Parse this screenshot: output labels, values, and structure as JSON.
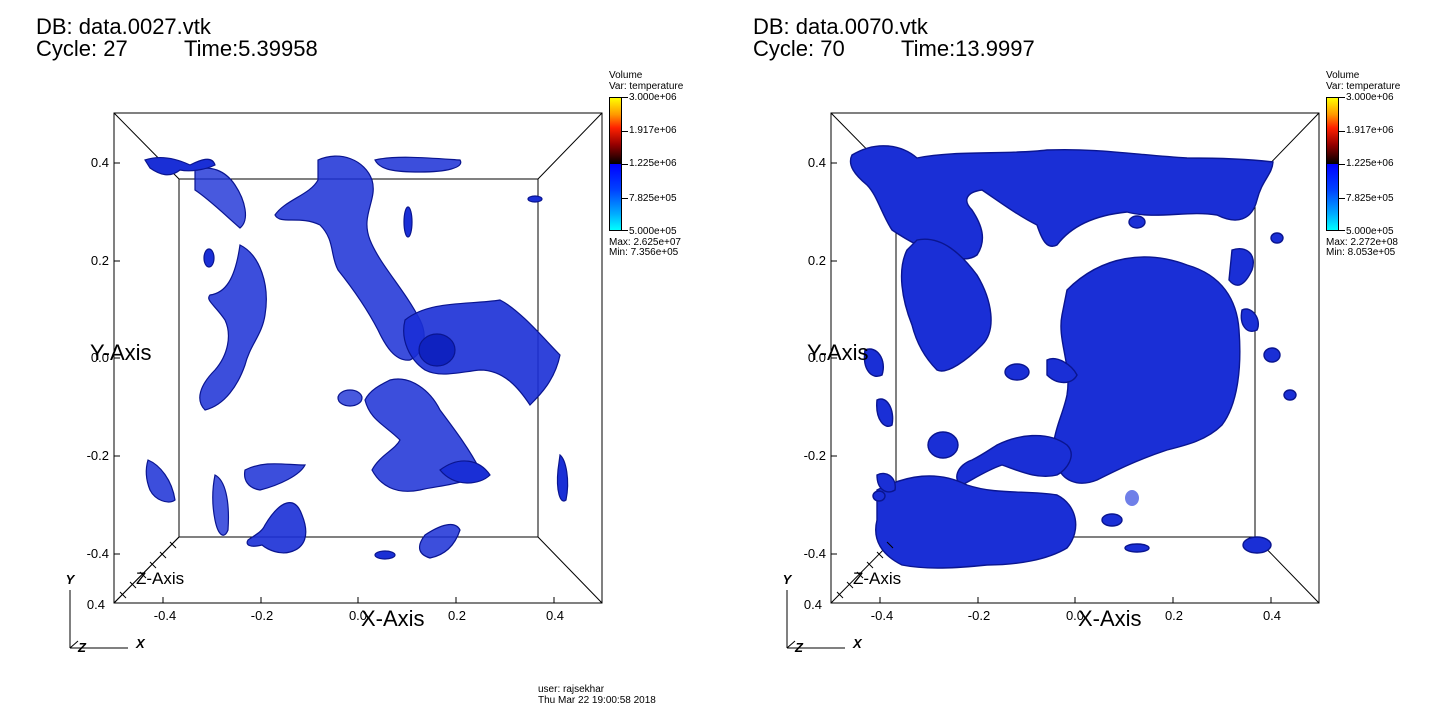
{
  "panels": [
    {
      "db": "DB: data.0027.vtk",
      "cycle": "Cycle: 27",
      "time": "Time:5.39958",
      "legend": {
        "title": "Volume",
        "var": "Var: temperature",
        "ticks": [
          "3.000e+06",
          "1.917e+06",
          "1.225e+06",
          "7.825e+05",
          "5.000e+05"
        ],
        "max": "Max:  2.625e+07",
        "min": "Min:  7.356e+05"
      },
      "y_ticks": [
        "0.4",
        "0.2",
        "0.0",
        "-0.2",
        "-0.4"
      ],
      "x_ticks": [
        "-0.4",
        "-0.2",
        "0.0",
        "0.2",
        "0.4"
      ],
      "y_axis_title": "Y-Axis",
      "x_axis_title": "X-Axis",
      "z_axis_title": "Z-Axis",
      "triad": {
        "y": "Y",
        "x": "X",
        "z": "Z"
      },
      "corner_tick": "0.4"
    },
    {
      "db": "DB: data.0070.vtk",
      "cycle": "Cycle: 70",
      "time": "Time:13.9997",
      "legend": {
        "title": "Volume",
        "var": "Var: temperature",
        "ticks": [
          "3.000e+06",
          "1.917e+06",
          "1.225e+06",
          "7.825e+05",
          "5.000e+05"
        ],
        "max": "Max:  2.272e+08",
        "min": "Min:  8.053e+05"
      },
      "y_ticks": [
        "0.4",
        "0.2",
        "0.0",
        "-0.2",
        "-0.4"
      ],
      "x_ticks": [
        "-0.4",
        "-0.2",
        "0.0",
        "0.2",
        "0.4"
      ],
      "y_axis_title": "Y-Axis",
      "x_axis_title": "X-Axis",
      "z_axis_title": "Z-Axis",
      "triad": {
        "y": "Y",
        "x": "X",
        "z": "Z"
      },
      "corner_tick": "0.4"
    }
  ],
  "footer": {
    "user": "user: rajsekhar",
    "date": "Thu Mar 22 19:00:58 2018"
  },
  "colors": {
    "plasma": "#1a2fd6",
    "plasma_dark": "#0a1590",
    "plasma_light": "#6f7fe8",
    "box": "#000000"
  }
}
